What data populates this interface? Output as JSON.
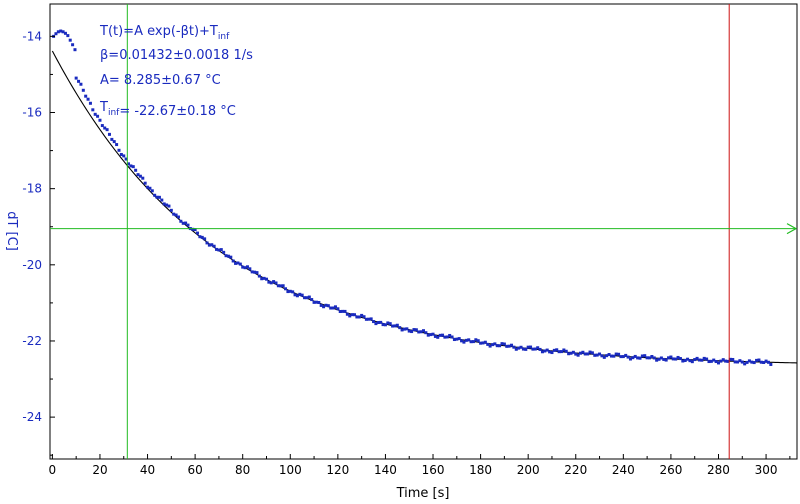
{
  "chart_data": {
    "type": "scatter",
    "title": "",
    "xlabel": "Time [s]",
    "ylabel": "dT [C]",
    "xlim": [
      -1,
      313
    ],
    "ylim": [
      -25.1,
      -13.15
    ],
    "xticks": [
      0,
      20,
      40,
      60,
      80,
      100,
      120,
      140,
      160,
      180,
      200,
      220,
      240,
      260,
      280,
      300
    ],
    "xtick_labels": [
      "0",
      "20",
      "40",
      "60",
      "80",
      "100",
      "120",
      "140",
      "160",
      "180",
      "200",
      "220",
      "240",
      "260",
      "280",
      "300"
    ],
    "yticks": [
      -14,
      -16,
      -18,
      -20,
      -22,
      -24
    ],
    "ytick_labels": [
      "-14",
      "-16",
      "-18",
      "-20",
      "-22",
      "-24"
    ],
    "grid": false,
    "colors": {
      "data": "#1a2bbf",
      "fit": "#000000",
      "cursor_green": "#22bb22",
      "cursor_red": "#cc1111",
      "axis_label": "#1a2bbf"
    },
    "fit": {
      "model": "exponential",
      "A": 8.285,
      "beta": 0.01432,
      "T_inf": -22.67,
      "x_range": [
        0,
        313
      ]
    },
    "series": [
      {
        "kind": "points",
        "start_bump": [
          [
            0.5,
            -14.0
          ],
          [
            1.5,
            -13.93
          ],
          [
            2.5,
            -13.88
          ],
          [
            3.5,
            -13.86
          ],
          [
            4.5,
            -13.88
          ],
          [
            5.5,
            -13.92
          ],
          [
            6.5,
            -13.98
          ],
          [
            7.5,
            -14.1
          ],
          [
            8.5,
            -14.22
          ],
          [
            9.5,
            -14.35
          ]
        ],
        "x_start": 10,
        "x_end": 302,
        "x_step": 1,
        "approach_offset": 0.42,
        "approach_rate": 0.055
      }
    ],
    "cursors": {
      "vertical_green_x": 31.5,
      "vertical_red_x": 284.5,
      "horizontal_green_y": -19.05
    },
    "annotations": [
      {
        "id": "model",
        "parts": [
          [
            "T(t)=A exp(-βt)+T",
            ""
          ],
          [
            "inf",
            "sub"
          ]
        ]
      },
      {
        "id": "beta",
        "parts": [
          [
            "β=0.01432±0.0018 1/s",
            ""
          ]
        ]
      },
      {
        "id": "amp",
        "parts": [
          [
            "A= 8.285±0.67 °C",
            ""
          ]
        ]
      },
      {
        "id": "tinf",
        "parts": [
          [
            "T",
            ""
          ],
          [
            "inf",
            "sub"
          ],
          [
            "= -22.67±0.18 °C",
            ""
          ]
        ]
      }
    ]
  }
}
